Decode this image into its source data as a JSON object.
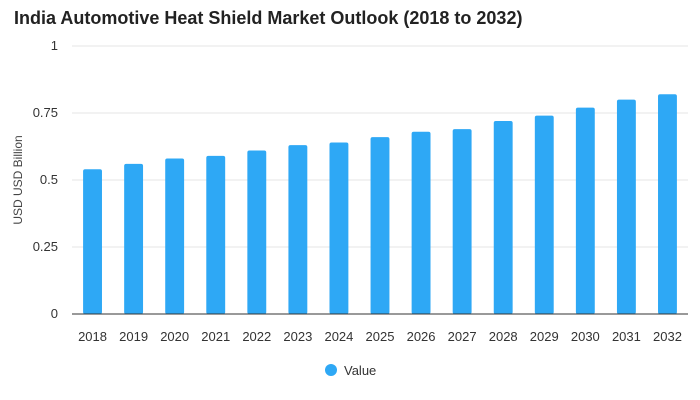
{
  "chart_data": {
    "type": "bar",
    "title": "India Automotive Heat Shield Market Outlook (2018 to 2032)",
    "xlabel": "",
    "ylabel": "USD USD Billion",
    "categories": [
      "2018",
      "2019",
      "2020",
      "2021",
      "2022",
      "2023",
      "2024",
      "2025",
      "2026",
      "2027",
      "2028",
      "2029",
      "2030",
      "2031",
      "2032"
    ],
    "series": [
      {
        "name": "Value",
        "values": [
          0.54,
          0.56,
          0.58,
          0.59,
          0.61,
          0.63,
          0.64,
          0.66,
          0.68,
          0.69,
          0.72,
          0.74,
          0.77,
          0.8,
          0.82
        ]
      }
    ],
    "ylim": [
      0,
      1
    ],
    "yticks": [
      "0",
      "0.25",
      "0.5",
      "0.75",
      "1"
    ],
    "ytick_values": [
      0,
      0.25,
      0.5,
      0.75,
      1
    ],
    "grid": true,
    "legend_position": "bottom-center",
    "bar_color": "#2ea8f5",
    "grid_color": "#e6e6e6",
    "axis_color": "#333333"
  }
}
